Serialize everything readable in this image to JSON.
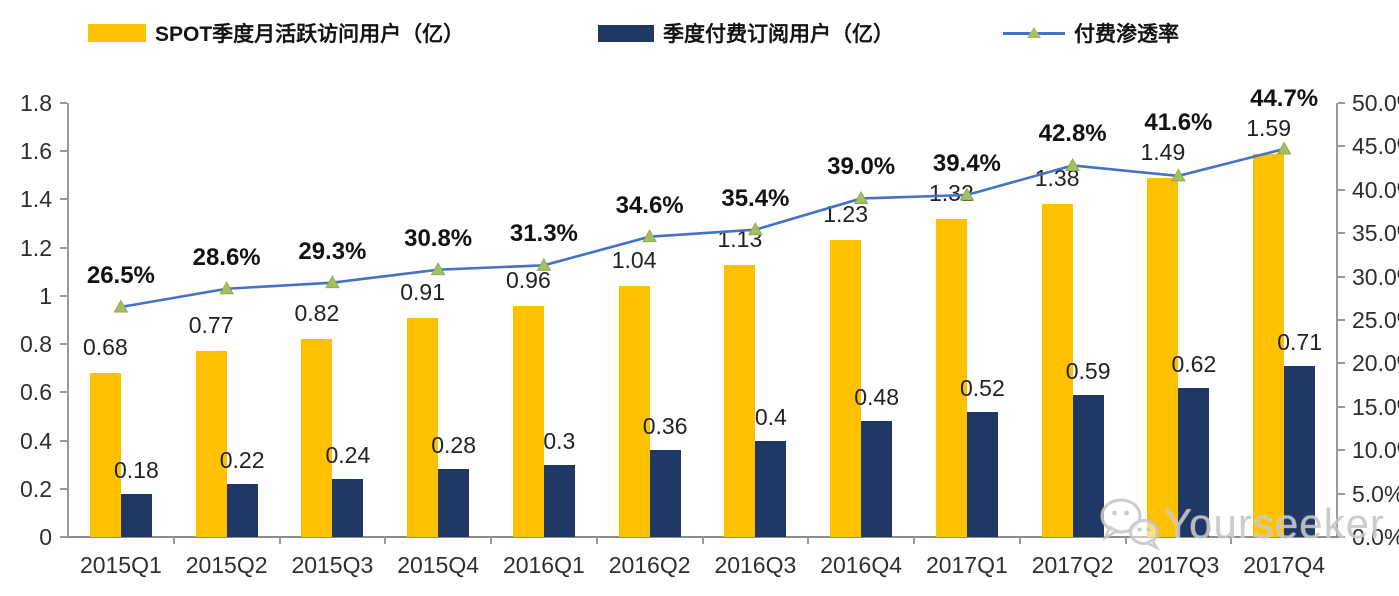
{
  "legend": [
    {
      "label": "SPOT季度月活跃访问用户（亿）",
      "type": "bar",
      "color": "#FFC000"
    },
    {
      "label": "季度付费订阅用户（亿）",
      "type": "bar",
      "color": "#1F3864"
    },
    {
      "label": "付费渗透率",
      "type": "line",
      "color": "#4472C4",
      "marker_color": "#A6C060"
    }
  ],
  "chart_data": {
    "type": "combo-bar-line",
    "title": "",
    "legend_position": "top",
    "grid": false,
    "categories": [
      "2015Q1",
      "2015Q2",
      "2015Q3",
      "2015Q4",
      "2016Q1",
      "2016Q2",
      "2016Q3",
      "2016Q4",
      "2017Q1",
      "2017Q2",
      "2017Q3",
      "2017Q4"
    ],
    "series": [
      {
        "name": "SPOT季度月活跃访问用户（亿）",
        "type": "bar",
        "axis": "left",
        "color": "#FFC000",
        "values": [
          0.68,
          0.77,
          0.82,
          0.91,
          0.96,
          1.04,
          1.13,
          1.23,
          1.32,
          1.38,
          1.49,
          1.59
        ],
        "labels": [
          "0.68",
          "0.77",
          "0.82",
          "0.91",
          "0.96",
          "1.04",
          "1.13",
          "1.23",
          "1.32",
          "1.38",
          "1.49",
          "1.59"
        ]
      },
      {
        "name": "季度付费订阅用户（亿）",
        "type": "bar",
        "axis": "left",
        "color": "#1F3864",
        "values": [
          0.18,
          0.22,
          0.24,
          0.28,
          0.3,
          0.36,
          0.4,
          0.48,
          0.52,
          0.59,
          0.62,
          0.71
        ],
        "labels": [
          "0.18",
          "0.22",
          "0.24",
          "0.28",
          "0.3",
          "0.36",
          "0.4",
          "0.48",
          "0.52",
          "0.59",
          "0.62",
          "0.71"
        ]
      },
      {
        "name": "付费渗透率",
        "type": "line",
        "axis": "right",
        "color": "#4472C4",
        "marker": "triangle",
        "marker_color": "#A6C060",
        "values": [
          26.5,
          28.6,
          29.3,
          30.8,
          31.3,
          34.6,
          35.4,
          39.0,
          39.4,
          42.8,
          41.6,
          44.7
        ],
        "labels": [
          "26.5%",
          "28.6%",
          "29.3%",
          "30.8%",
          "31.3%",
          "34.6%",
          "35.4%",
          "39.0%",
          "39.4%",
          "42.8%",
          "41.6%",
          "44.7%"
        ]
      }
    ],
    "left_axis": {
      "min": 0,
      "max": 1.8,
      "step": 0.2,
      "tick_labels": [
        "0",
        "0.2",
        "0.4",
        "0.6",
        "0.8",
        "1",
        "1.2",
        "1.4",
        "1.6",
        "1.8"
      ]
    },
    "right_axis": {
      "min": 0,
      "max": 50,
      "step": 5,
      "tick_labels": [
        "0.0%",
        "5.0%",
        "10.0%",
        "15.0%",
        "20.0%",
        "25.0%",
        "30.0%",
        "35.0%",
        "40.0%",
        "45.0%",
        "50.0%"
      ]
    }
  },
  "watermark": {
    "text": "Yourseeker",
    "icon": "wechat-icon"
  }
}
